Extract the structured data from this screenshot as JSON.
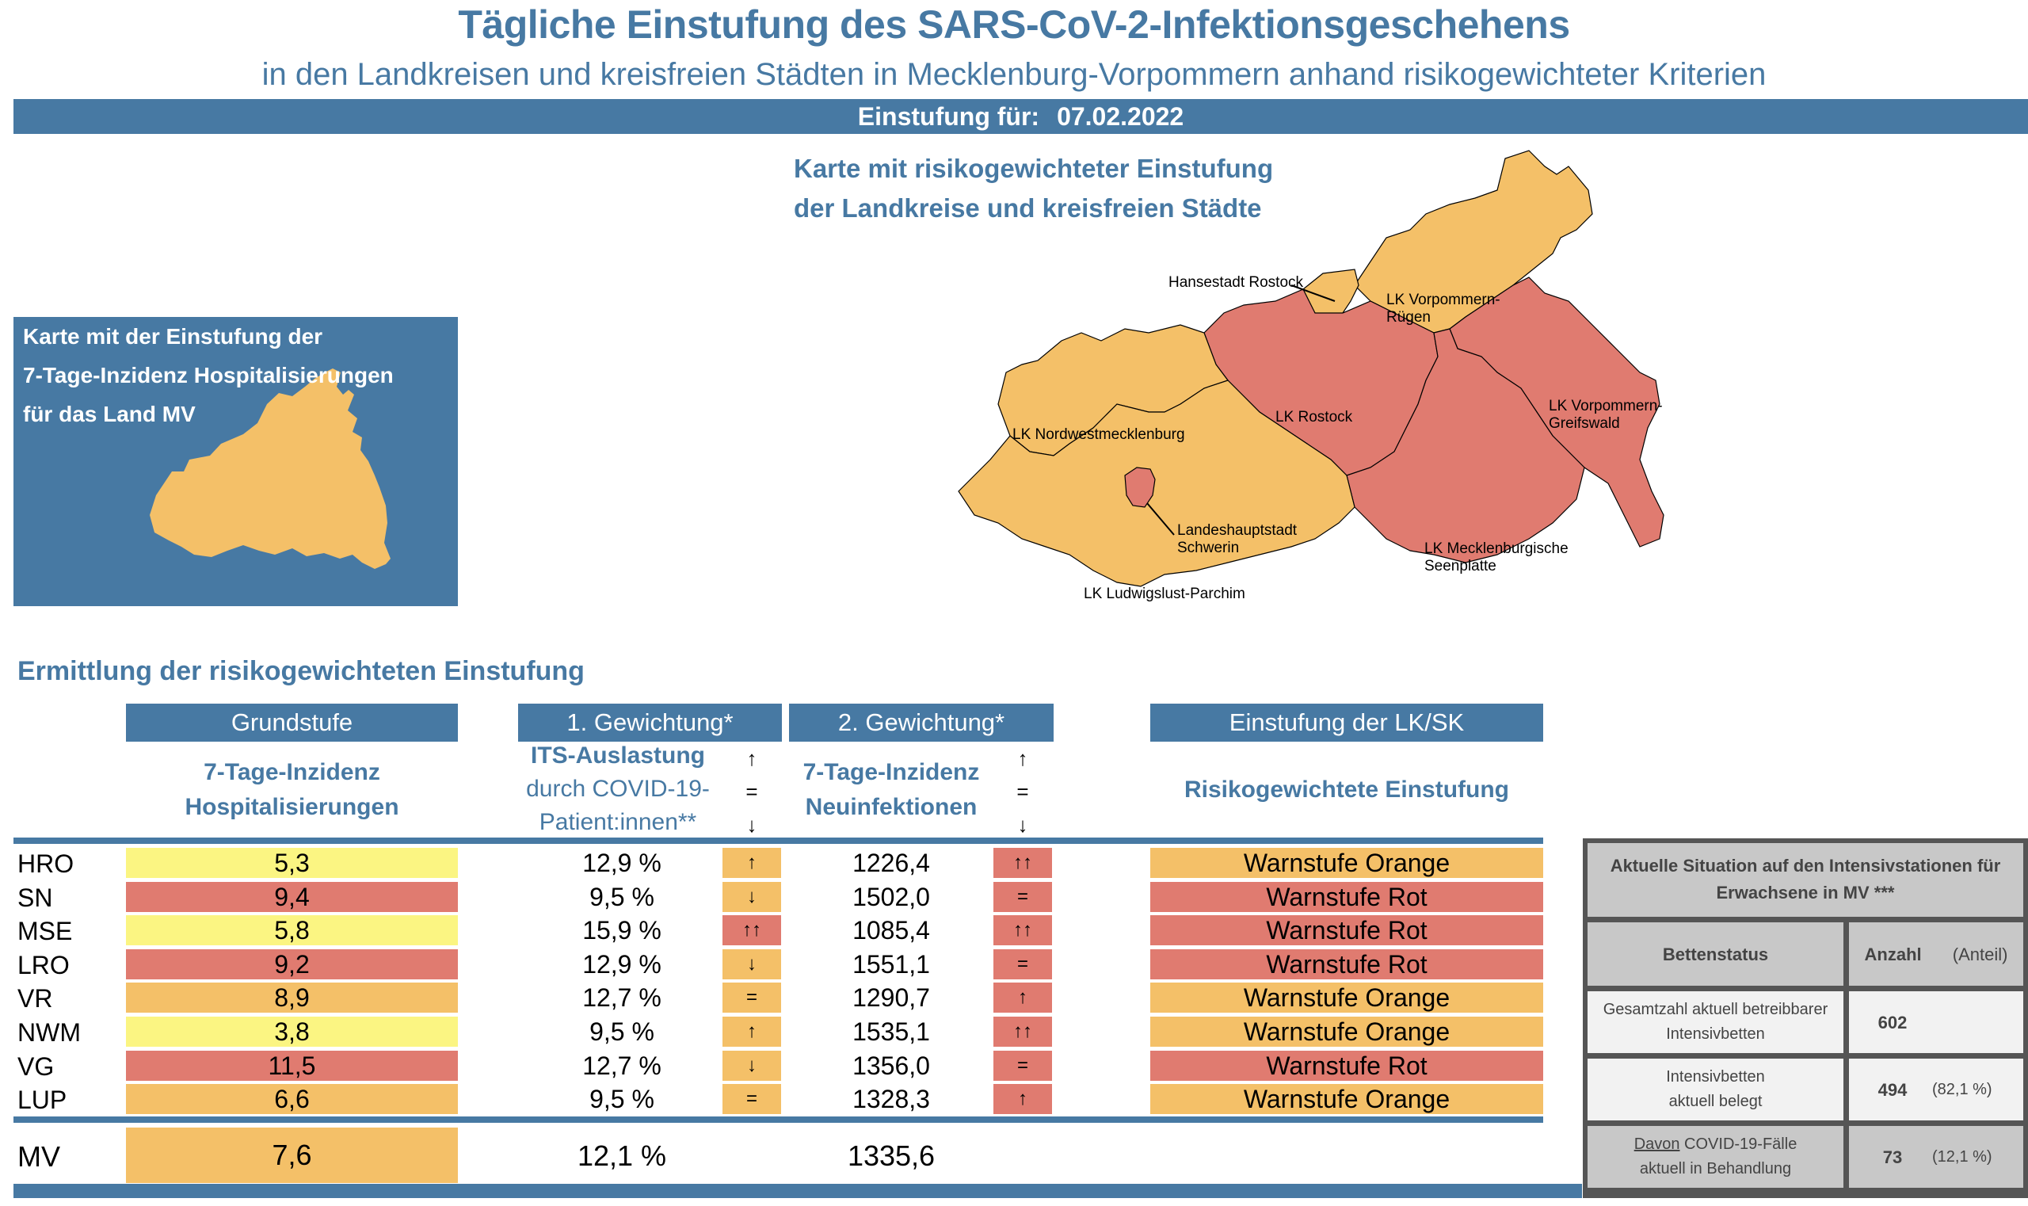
{
  "header": {
    "title": "Tägliche Einstufung des SARS-CoV-2-Infektionsgeschehens",
    "subtitle": "in den Landkreisen und kreisfreien Städten in Mecklenburg-Vorpommern anhand risikogewichteter Kriterien",
    "date_label": "Einstufung für:",
    "date_value": "07.02.2022"
  },
  "small_map": {
    "caption_lines": [
      "Karte mit der Einstufung der",
      "7-Tage-Inzidenz Hospitalisierungen",
      "für das Land MV"
    ],
    "fill_color": "#f4c068"
  },
  "big_map": {
    "title_lines": [
      "Karte mit risikogewichteter Einstufung",
      "der Landkreise und kreisfreien Städte"
    ],
    "regions": [
      {
        "name": "Hansestadt Rostock",
        "level": "orange"
      },
      {
        "name": "LK Vorpommern-Rügen",
        "label_lines": [
          "LK Vorpommern-",
          "Rügen"
        ],
        "level": "orange"
      },
      {
        "name": "LK Rostock",
        "level": "red"
      },
      {
        "name": "LK Vorpommern-Greifswald",
        "label_lines": [
          "LK Vorpommern-",
          "Greifswald"
        ],
        "level": "red"
      },
      {
        "name": "LK Nordwestmecklenburg",
        "level": "orange"
      },
      {
        "name": "Landeshauptstadt Schwerin",
        "label_lines": [
          "Landeshauptstadt",
          "Schwerin"
        ],
        "level": "red"
      },
      {
        "name": "LK Mecklenburgische Seenplatte",
        "label_lines": [
          "LK Mecklenburgische",
          "Seenplatte"
        ],
        "level": "red"
      },
      {
        "name": "LK Ludwigslust-Parchim",
        "level": "orange"
      }
    ]
  },
  "colors": {
    "blue": "#4779a3",
    "yellow": "#fbf582",
    "orange": "#f4c068",
    "red": "#e07b70",
    "its_dark": "#555555",
    "its_light": "#c8c8c8"
  },
  "table": {
    "section_title": "Ermittlung der risikogewichteten Einstufung",
    "headers": {
      "grundstufe": "Grundstufe",
      "gew1": "1. Gewichtung*",
      "gew2": "2. Gewichtung*",
      "einstufung": "Einstufung der LK/SK"
    },
    "subheaders": {
      "grundstufe": [
        "7-Tage-Inzidenz",
        "Hospitalisierungen"
      ],
      "gew1": [
        "ITS-Auslastung",
        "durch COVID-19-",
        "Patient:innen**"
      ],
      "gew2": [
        "7-Tage-Inzidenz",
        "Neuinfektionen"
      ],
      "einstufung": "Risikogewichtete Einstufung",
      "arrow_legend": [
        "↑",
        "=",
        "↓"
      ]
    },
    "rows": [
      {
        "region": "HRO",
        "hosp": "5,3",
        "hosp_level": "yellow",
        "its": "12,9 %",
        "its_trend": "↑",
        "its_trend_level": "orange",
        "inz": "1226,4",
        "inz_trend": "↑↑",
        "inz_trend_level": "red",
        "result": "Warnstufe Orange",
        "result_level": "orange"
      },
      {
        "region": "SN",
        "hosp": "9,4",
        "hosp_level": "red",
        "its": "9,5 %",
        "its_trend": "↓",
        "its_trend_level": "orange",
        "inz": "1502,0",
        "inz_trend": "=",
        "inz_trend_level": "red",
        "result": "Warnstufe Rot",
        "result_level": "red"
      },
      {
        "region": "MSE",
        "hosp": "5,8",
        "hosp_level": "yellow",
        "its": "15,9 %",
        "its_trend": "↑↑",
        "its_trend_level": "red",
        "inz": "1085,4",
        "inz_trend": "↑↑",
        "inz_trend_level": "red",
        "result": "Warnstufe Rot",
        "result_level": "red"
      },
      {
        "region": "LRO",
        "hosp": "9,2",
        "hosp_level": "red",
        "its": "12,9 %",
        "its_trend": "↓",
        "its_trend_level": "orange",
        "inz": "1551,1",
        "inz_trend": "=",
        "inz_trend_level": "red",
        "result": "Warnstufe Rot",
        "result_level": "red"
      },
      {
        "region": "VR",
        "hosp": "8,9",
        "hosp_level": "orange",
        "its": "12,7 %",
        "its_trend": "=",
        "its_trend_level": "orange",
        "inz": "1290,7",
        "inz_trend": "↑",
        "inz_trend_level": "red",
        "result": "Warnstufe Orange",
        "result_level": "orange"
      },
      {
        "region": "NWM",
        "hosp": "3,8",
        "hosp_level": "yellow",
        "its": "9,5 %",
        "its_trend": "↑",
        "its_trend_level": "orange",
        "inz": "1535,1",
        "inz_trend": "↑↑",
        "inz_trend_level": "red",
        "result": "Warnstufe Orange",
        "result_level": "orange"
      },
      {
        "region": "VG",
        "hosp": "11,5",
        "hosp_level": "red",
        "its": "12,7 %",
        "its_trend": "↓",
        "its_trend_level": "orange",
        "inz": "1356,0",
        "inz_trend": "=",
        "inz_trend_level": "red",
        "result": "Warnstufe Rot",
        "result_level": "red"
      },
      {
        "region": "LUP",
        "hosp": "6,6",
        "hosp_level": "orange",
        "its": "9,5 %",
        "its_trend": "=",
        "its_trend_level": "orange",
        "inz": "1328,3",
        "inz_trend": "↑",
        "inz_trend_level": "red",
        "result": "Warnstufe Orange",
        "result_level": "orange"
      }
    ],
    "total": {
      "region": "MV",
      "hosp": "7,6",
      "hosp_level": "orange",
      "its": "12,1 %",
      "inz": "1335,6"
    }
  },
  "its_panel": {
    "title_lines": [
      "Aktuelle Situation auf den Intensivstationen für",
      "Erwachsene in MV ***"
    ],
    "col_status": "Bettenstatus",
    "col_count": "Anzahl",
    "col_share": "(Anteil)",
    "rows": [
      {
        "label_lines": [
          "Gesamtzahl aktuell betreibbarer",
          "Intensivbetten"
        ],
        "count": "602",
        "share": ""
      },
      {
        "label_lines": [
          "Intensivbetten",
          "aktuell belegt"
        ],
        "count": "494",
        "share": "(82,1 %)"
      },
      {
        "label_underlined": "Davon",
        "label_lines": [
          " COVID-19-Fälle",
          "aktuell in Behandlung"
        ],
        "count": "73",
        "share": "(12,1 %)"
      }
    ]
  }
}
